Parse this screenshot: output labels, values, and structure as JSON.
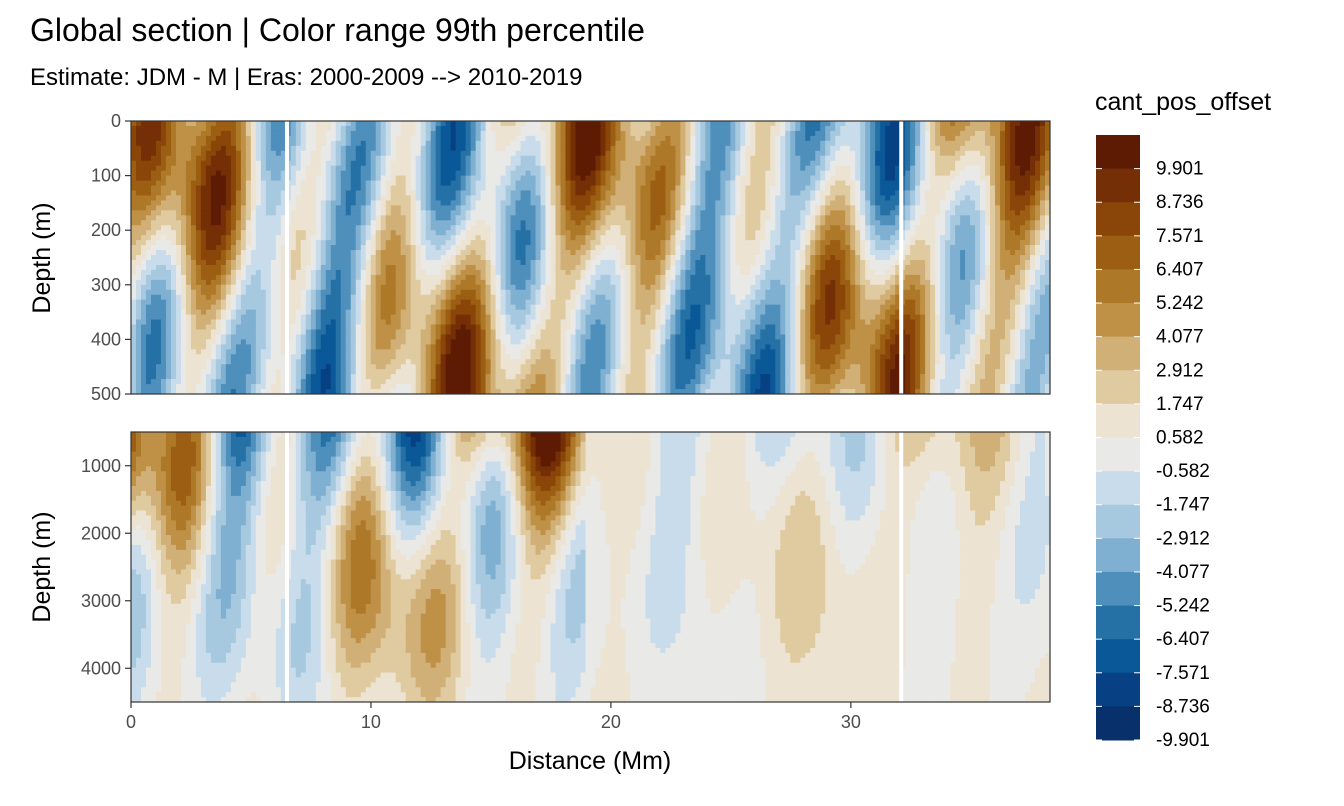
{
  "chart_data": {
    "type": "heatmap",
    "title": "Global section | Color range 99th percentile",
    "subtitle": "Estimate: JDM - M | Eras: 2000-2009 --> 2010-2019",
    "xlabel": "Distance (Mm)",
    "ylabel": "Depth (m)",
    "legend_title": "cant_pos_offset",
    "legend_placement": "right",
    "grid": true,
    "x_ticks": [
      0,
      10,
      20,
      30
    ],
    "xlim": [
      0,
      38.3
    ],
    "panels": [
      {
        "name": "upper",
        "ylim": [
          0,
          500
        ],
        "y_reversed": true,
        "y_ticks": [
          0,
          100,
          200,
          300,
          400,
          500
        ]
      },
      {
        "name": "lower",
        "ylim": [
          500,
          4500
        ],
        "y_reversed": true,
        "y_ticks": [
          1000,
          2000,
          3000,
          4000
        ]
      }
    ],
    "legend_breaks": [
      "9.901",
      "8.736",
      "7.571",
      "6.407",
      "5.242",
      "4.077",
      "2.912",
      "1.747",
      "0.582",
      "-0.582",
      "-1.747",
      "-2.912",
      "-4.077",
      "-5.242",
      "-6.407",
      "-7.571",
      "-8.736",
      "-9.901"
    ],
    "colors": [
      "#5e1b04",
      "#752f06",
      "#8a4608",
      "#9c5e12",
      "#ad7828",
      "#bf9147",
      "#d1b078",
      "#e0cba0",
      "#ece3d2",
      "#e9eae7",
      "#c9dceb",
      "#a7c9df",
      "#7fb0d1",
      "#4e8fbc",
      "#2571a6",
      "#0a5897",
      "#074184",
      "#08306b"
    ]
  }
}
